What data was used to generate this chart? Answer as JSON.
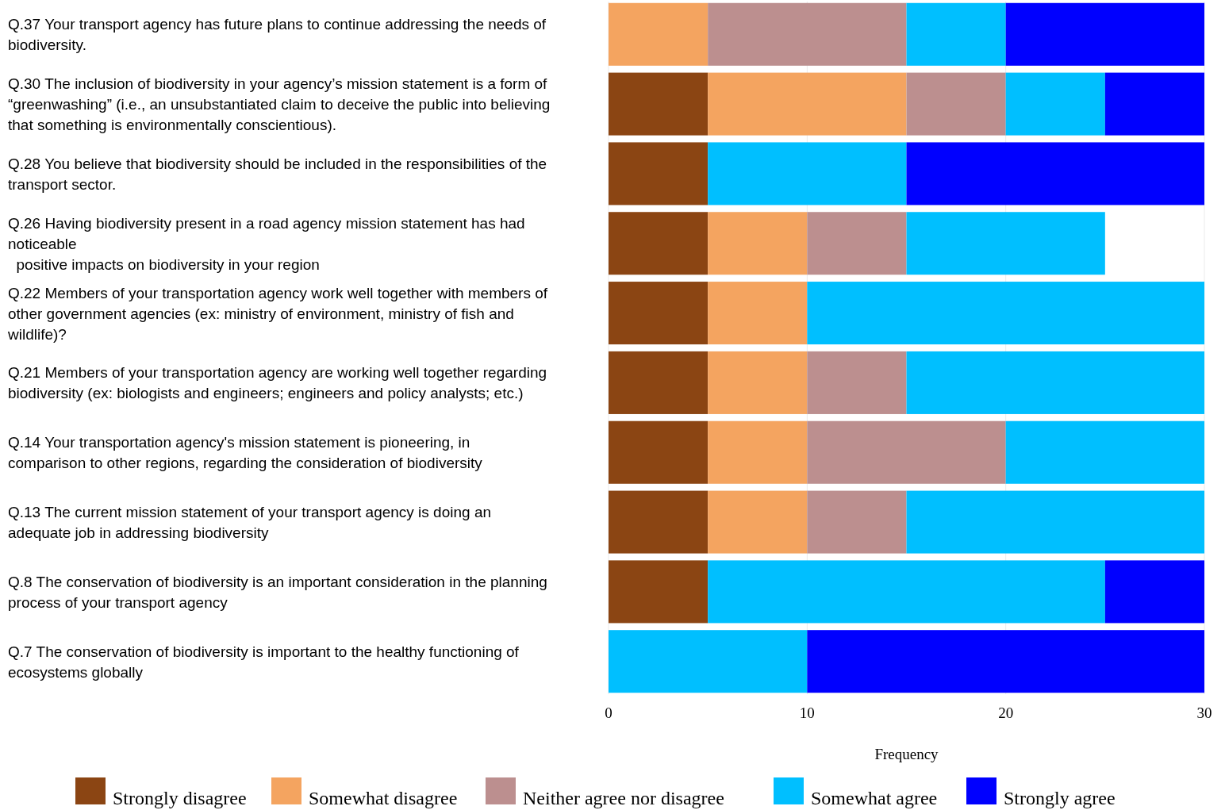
{
  "chart_data": {
    "type": "bar",
    "orientation": "horizontal",
    "stacked": true,
    "categories": [
      "Q.37 Your transport agency has future plans to continue addressing the needs of\nbiodiversity.",
      "Q.30 The inclusion of biodiversity in your agency’s mission statement is a form of\n“greenwashing” (i.e., an unsubstantiated claim to deceive the public into believing\nthat something is environmentally conscientious).",
      "Q.28 You believe that biodiversity should be included in the responsibilities of the\ntransport sector.",
      "Q.26 Having biodiversity present in a road agency mission statement has had\nnoticeable\n  positive impacts on biodiversity in your region",
      "Q.22 Members of your transportation agency work well together with members of\nother government agencies (ex: ministry of environment, ministry of fish and\nwildlife)?",
      "Q.21 Members of your transportation agency are working well together regarding\nbiodiversity (ex: biologists and engineers; engineers and policy analysts; etc.)",
      "Q.14 Your transportation agency's mission statement is pioneering, in\ncomparison to other regions, regarding the consideration of biodiversity",
      "Q.13 The current mission statement of your transport agency is doing an\nadequate job in addressing biodiversity",
      "Q.8 The conservation of biodiversity is an important consideration in the planning\nprocess of your transport agency",
      "Q.7 The conservation of biodiversity is important to the healthy functioning of\necosystems globally"
    ],
    "series": [
      {
        "name": "Strongly disagree",
        "color": "#8b4513",
        "values": [
          0,
          5,
          5,
          5,
          5,
          5,
          5,
          5,
          5,
          0
        ]
      },
      {
        "name": "Somewhat disagree",
        "color": "#f4a460",
        "values": [
          5,
          10,
          0,
          5,
          5,
          5,
          5,
          5,
          0,
          0
        ]
      },
      {
        "name": "Neither agree nor disagree",
        "color": "#bc8f8f",
        "values": [
          10,
          5,
          0,
          5,
          0,
          5,
          10,
          5,
          0,
          0
        ]
      },
      {
        "name": "Somewhat agree",
        "color": "#00bfff",
        "values": [
          5,
          5,
          10,
          10,
          20,
          15,
          10,
          15,
          20,
          10
        ]
      },
      {
        "name": "Strongly agree",
        "color": "#0000ff",
        "values": [
          10,
          5,
          15,
          0,
          0,
          0,
          0,
          0,
          5,
          20
        ]
      }
    ],
    "xlim": [
      0,
      30
    ],
    "xticks": [
      0,
      10,
      20,
      30
    ],
    "xlabel": "Frequency",
    "grid": "x",
    "legend": "bottom"
  }
}
